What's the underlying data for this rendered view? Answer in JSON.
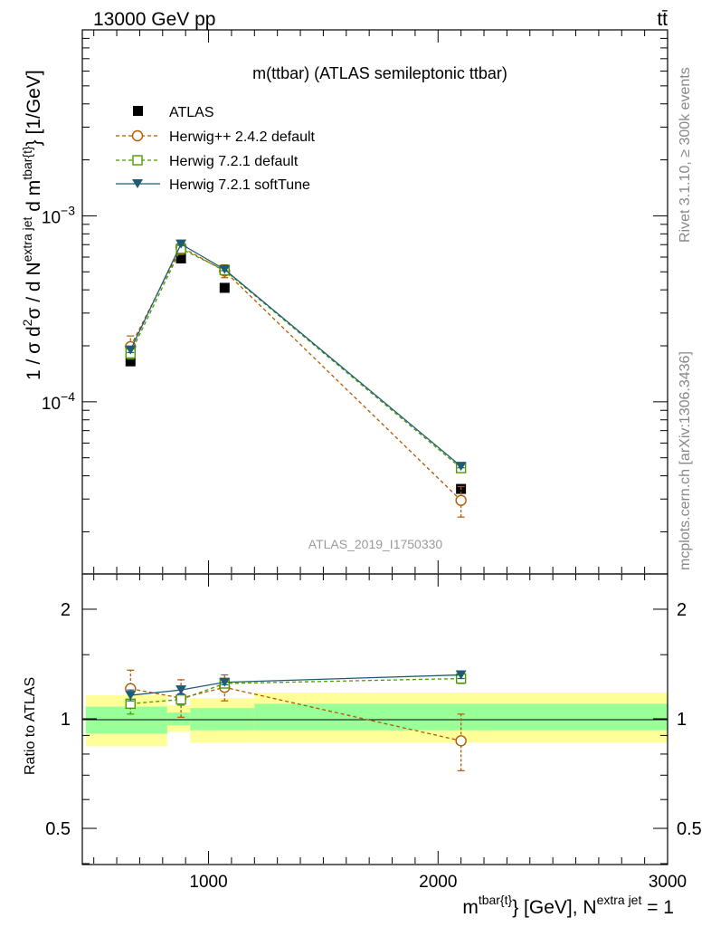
{
  "header": {
    "energy": "13000 GeV pp",
    "process": "tt̄"
  },
  "side_labels": {
    "rivet": "Rivet 3.1.10, ≥ 300k events",
    "mcplots": "mcplots.cern.ch [arXiv:1306.3436]"
  },
  "chart_data": [
    {
      "type": "line",
      "scale": "log",
      "title": "m(ttbar) (ATLAS semileptonic ttbar)",
      "analysis_id": "ATLAS_2019_I1750330",
      "ylabel": "1 / σ d²σ / d N^extra jet d m^tbar{t} [1/GeV]",
      "ylabel_parts": {
        "a": "1 / σ d",
        "sup1": "2",
        "b": "σ / d N",
        "sup2": "extra jet",
        "c": " d m",
        "sup3": "tbar{t}",
        "d": "} [1/GeV]"
      },
      "ylim": [
        1.2e-05,
        0.01
      ],
      "xlim": [
        450,
        3000
      ],
      "y_tick_labels": [
        {
          "base": "10",
          "exp": "−3",
          "value": 0.001
        },
        {
          "base": "10",
          "exp": "−4",
          "value": 0.0001
        }
      ],
      "x": [
        660,
        880,
        1070,
        2100
      ],
      "series": [
        {
          "name": "ATLAS",
          "marker": "square-filled",
          "color": "#000000",
          "values": [
            0.000165,
            0.00059,
            0.00041,
            3.4e-05
          ],
          "err_low": [
            8e-06,
            2e-05,
            1.5e-05,
            1.5e-06
          ],
          "err_high": [
            8e-06,
            2e-05,
            1.5e-05,
            1.5e-06
          ]
        },
        {
          "name": "Herwig++ 2.4.2 default",
          "marker": "circle-open",
          "color": "#b35900",
          "dash": true,
          "values": [
            0.000198,
            0.00068,
            0.000505,
            2.95e-05
          ],
          "err_low": [
            2.8e-05,
            6e-05,
            4e-05,
            5.5e-06
          ],
          "err_high": [
            2.8e-05,
            6e-05,
            4e-05,
            5.5e-06
          ]
        },
        {
          "name": "Herwig 7.2.1 default",
          "marker": "square-open",
          "color": "#4d9900",
          "dash": true,
          "values": [
            0.000182,
            0.000665,
            0.00051,
            4.4e-05
          ],
          "err_low": [
            1.2e-05,
            2e-05,
            1e-05,
            1e-06
          ],
          "err_high": [
            1.2e-05,
            2e-05,
            1e-05,
            1e-06
          ]
        },
        {
          "name": "Herwig 7.2.1 softTune",
          "marker": "triangle-down-filled",
          "color": "#1f5c73",
          "values": [
            0.00019,
            0.000705,
            0.000515,
            4.5e-05
          ],
          "err_low": [
            6e-06,
            1.2e-05,
            8e-06,
            8e-07
          ],
          "err_high": [
            6e-06,
            1.2e-05,
            8e-06,
            8e-07
          ]
        }
      ]
    },
    {
      "type": "line",
      "title": "",
      "ylabel": "Ratio to ATLAS",
      "xlabel": "m^tbar{t}} [GeV], N^extra jet = 1",
      "xlabel_parts": {
        "a": "m",
        "sup1": "tbar{t}",
        "b": "} [GeV], N",
        "sup2": "extra jet",
        "c": " = 1"
      },
      "xlim": [
        450,
        3000
      ],
      "ylim": [
        0.4,
        2.5
      ],
      "scale": "log",
      "x_ticks": [
        1000,
        2000,
        3000
      ],
      "x_tick_labels": [
        "1000",
        "2000",
        "3000"
      ],
      "y_ticks": [
        0.5,
        1,
        2
      ],
      "y_tick_labels": [
        "0.5",
        "1",
        "2"
      ],
      "bands": [
        {
          "x0": 450,
          "x1": 820,
          "stat_lo": 0.91,
          "stat_hi": 1.08,
          "tot_lo": 0.84,
          "tot_hi": 1.16
        },
        {
          "x0": 820,
          "x1": 920,
          "stat_lo": 0.96,
          "stat_hi": 1.04,
          "tot_lo": 0.92,
          "tot_hi": 1.09
        },
        {
          "x0": 920,
          "x1": 1200,
          "stat_lo": 0.93,
          "stat_hi": 1.07,
          "tot_lo": 0.86,
          "tot_hi": 1.14
        },
        {
          "x0": 1200,
          "x1": 3000,
          "stat_lo": 0.93,
          "stat_hi": 1.1,
          "tot_lo": 0.86,
          "tot_hi": 1.18
        }
      ],
      "x": [
        660,
        880,
        1070,
        2100
      ],
      "series": [
        {
          "name": "Herwig++ 2.4.2 default",
          "color": "#b35900",
          "marker": "circle-open",
          "dash": true,
          "values": [
            1.21,
            1.14,
            1.22,
            0.87
          ],
          "err_low": [
            0.14,
            0.13,
            0.1,
            0.15
          ],
          "err_high": [
            0.15,
            0.14,
            0.1,
            0.16
          ]
        },
        {
          "name": "Herwig 7.2.1 default",
          "color": "#4d9900",
          "marker": "square-open",
          "dash": true,
          "values": [
            1.1,
            1.13,
            1.25,
            1.29
          ],
          "err_low": [
            0.07,
            0.04,
            0.025,
            0.04
          ],
          "err_high": [
            0.07,
            0.04,
            0.025,
            0.04
          ]
        },
        {
          "name": "Herwig 7.2.1 softTune",
          "color": "#1f5c73",
          "marker": "triangle-down-filled",
          "values": [
            1.16,
            1.2,
            1.26,
            1.32
          ],
          "err_low": [
            0.04,
            0.03,
            0.02,
            0.03
          ],
          "err_high": [
            0.04,
            0.03,
            0.02,
            0.03
          ]
        }
      ]
    }
  ]
}
